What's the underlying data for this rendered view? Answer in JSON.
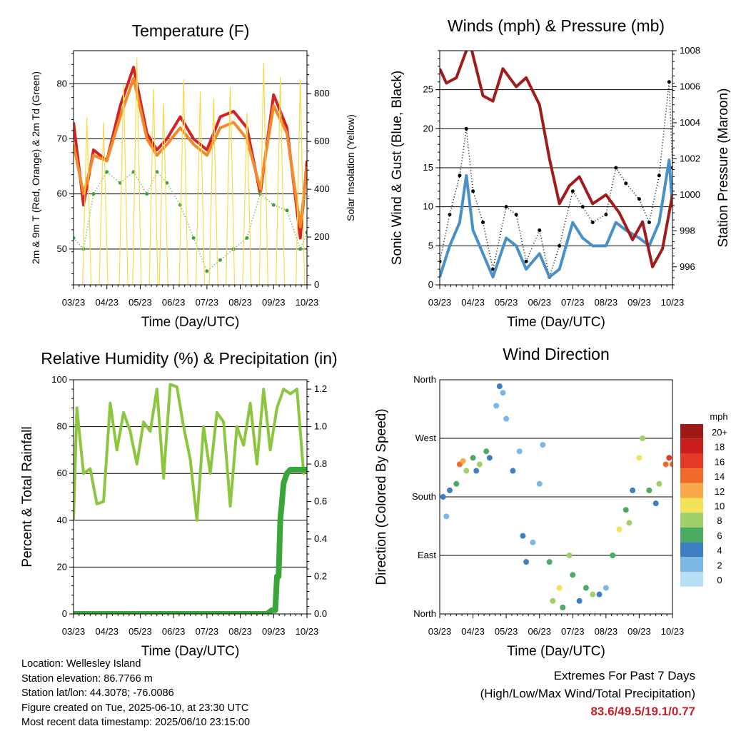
{
  "chart_data": [
    {
      "type": "line",
      "title": "Temperature (F)",
      "xlabel": "Time (Day/UTC)",
      "ylabel": "2m & 9m T (Red, Orange) & 2m Td (Green)",
      "y2label": "Solar Insolation (Yellow)",
      "x_ticks": [
        "03/23",
        "04/23",
        "05/23",
        "06/23",
        "07/23",
        "08/23",
        "09/23",
        "10/23"
      ],
      "y_ticks": [
        50,
        60,
        70,
        80
      ],
      "y2_ticks": [
        0,
        200,
        400,
        600,
        800
      ],
      "ylim": [
        43.5,
        86
      ],
      "y2lim": [
        0,
        980
      ],
      "grid": "horizontal",
      "colors": {
        "t2m": "#d42222",
        "t9m": "#f4892a",
        "td": "#3aa63a",
        "solar": "#f7d94a"
      },
      "series": [
        {
          "name": "2m T",
          "axis": "left",
          "style": "line",
          "color": "#d42222",
          "x": [
            0,
            0.3,
            0.6,
            1,
            1.4,
            1.8,
            2.2,
            2.5,
            2.8,
            3.2,
            3.6,
            4,
            4.4,
            4.8,
            5.2,
            5.6,
            6,
            6.4,
            6.8,
            7
          ],
          "y": [
            73,
            58,
            68,
            66,
            76,
            83,
            71,
            68,
            70,
            74,
            70,
            68,
            74,
            75,
            72,
            60,
            78,
            72,
            52,
            66
          ]
        },
        {
          "name": "9m T",
          "axis": "left",
          "style": "line",
          "color": "#f4892a",
          "x": [
            0,
            0.3,
            0.6,
            1,
            1.4,
            1.8,
            2.2,
            2.5,
            2.8,
            3.2,
            3.6,
            4,
            4.4,
            4.8,
            5.2,
            5.6,
            6,
            6.4,
            6.8,
            7
          ],
          "y": [
            69,
            60,
            67,
            66,
            74,
            81,
            70,
            67,
            69,
            72,
            69,
            67,
            72,
            73,
            70,
            61,
            76,
            71,
            54,
            65
          ]
        },
        {
          "name": "2m Td",
          "axis": "left",
          "style": "dots",
          "color": "#3aa63a",
          "x": [
            0,
            0.3,
            0.6,
            1,
            1.4,
            1.8,
            2.2,
            2.5,
            2.8,
            3.2,
            3.6,
            4,
            4.4,
            4.8,
            5.2,
            5.6,
            6,
            6.4,
            6.8,
            7
          ],
          "y": [
            52,
            50,
            60,
            64,
            62,
            64,
            60,
            64,
            62,
            58,
            52,
            46,
            48,
            50,
            52,
            60,
            58,
            57,
            50,
            53
          ]
        },
        {
          "name": "Solar",
          "axis": "right",
          "style": "spikes",
          "color": "#f7d94a",
          "x": [
            0.4,
            0.9,
            1.5,
            1.9,
            2.4,
            2.7,
            3.3,
            3.8,
            4.2,
            4.7,
            5.2,
            5.7,
            6.2,
            6.8
          ],
          "y": [
            700,
            680,
            840,
            950,
            820,
            760,
            860,
            810,
            780,
            830,
            720,
            930,
            870,
            860
          ]
        }
      ]
    },
    {
      "type": "line",
      "title": "Winds (mph) & Pressure (mb)",
      "xlabel": "Time (Day/UTC)",
      "ylabel": "Sonic Wind & Gust (Blue, Black)",
      "y2label": "Station Pressure (Maroon)",
      "x_ticks": [
        "03/23",
        "04/23",
        "05/23",
        "06/23",
        "07/23",
        "08/23",
        "09/23",
        "10/23"
      ],
      "y_ticks": [
        0,
        5,
        10,
        15,
        20,
        25
      ],
      "y2_ticks": [
        996,
        998,
        1000,
        1002,
        1004,
        1006,
        1008
      ],
      "ylim": [
        0,
        30
      ],
      "y2lim": [
        995,
        1008
      ],
      "grid": "horizontal",
      "colors": {
        "wind": "#4a90c8",
        "gust": "#000000",
        "pressure": "#a01c1c"
      },
      "series": [
        {
          "name": "Gust",
          "axis": "left",
          "style": "dots",
          "color": "#000000",
          "x": [
            0,
            0.3,
            0.6,
            0.8,
            1,
            1.3,
            1.6,
            2,
            2.3,
            2.6,
            3,
            3.3,
            3.6,
            4,
            4.3,
            4.6,
            5,
            5.3,
            5.6,
            6,
            6.3,
            6.6,
            6.9,
            7
          ],
          "y": [
            3,
            9,
            14,
            20,
            12,
            8,
            2,
            10,
            9,
            3,
            7,
            1,
            5,
            12,
            10,
            8,
            9,
            15,
            13,
            11,
            8,
            14,
            26,
            15
          ]
        },
        {
          "name": "Wind",
          "axis": "left",
          "style": "line",
          "color": "#4a90c8",
          "x": [
            0,
            0.3,
            0.6,
            0.8,
            1,
            1.3,
            1.6,
            2,
            2.3,
            2.6,
            3,
            3.3,
            3.6,
            4,
            4.3,
            4.6,
            5,
            5.3,
            5.6,
            6,
            6.3,
            6.6,
            6.9,
            7
          ],
          "y": [
            1,
            5,
            8,
            14,
            7,
            4,
            1,
            6,
            5,
            2,
            4,
            1,
            2,
            8,
            6,
            5,
            5,
            8,
            7,
            6,
            5,
            8,
            16,
            10
          ]
        },
        {
          "name": "Pressure",
          "axis": "right",
          "style": "line",
          "color": "#a01c1c",
          "x": [
            0,
            0.2,
            0.5,
            0.9,
            1.3,
            1.6,
            1.9,
            2.3,
            2.6,
            3,
            3.3,
            3.6,
            3.9,
            4.2,
            4.6,
            5,
            5.4,
            5.8,
            6.1,
            6.4,
            6.7,
            7
          ],
          "y": [
            1007,
            1006.2,
            1006.5,
            1008.5,
            1005.5,
            1005.2,
            1007,
            1006,
            1006.5,
            1005,
            1002,
            999.5,
            1000.5,
            1001,
            999.5,
            1000,
            999,
            997.5,
            998.5,
            996,
            997,
            1000
          ]
        }
      ]
    },
    {
      "type": "line",
      "title": "Relative Humidity (%) & Precipitation (in)",
      "xlabel": "Time (Day/UTC)",
      "ylabel": "Percent & Total Rainfall",
      "x_ticks": [
        "03/23",
        "04/23",
        "05/23",
        "06/23",
        "07/23",
        "08/23",
        "09/23",
        "10/23"
      ],
      "y_ticks": [
        0,
        20,
        40,
        60,
        80,
        100
      ],
      "y2_ticks": [
        0.0,
        0.2,
        0.4,
        0.6,
        0.8,
        1.0,
        1.2
      ],
      "ylim": [
        0,
        100
      ],
      "y2lim": [
        0,
        1.25
      ],
      "grid": "horizontal",
      "colors": {
        "rh": "#8cc63f",
        "precip": "#3aa63a"
      },
      "series": [
        {
          "name": "RH",
          "axis": "left",
          "style": "line",
          "color": "#8cc63f",
          "x": [
            0,
            0.1,
            0.3,
            0.5,
            0.7,
            0.9,
            1.1,
            1.3,
            1.5,
            1.7,
            1.9,
            2.1,
            2.3,
            2.5,
            2.7,
            2.9,
            3.1,
            3.3,
            3.5,
            3.7,
            3.9,
            4.1,
            4.3,
            4.5,
            4.7,
            4.9,
            5.1,
            5.3,
            5.5,
            5.7,
            5.9,
            6.1,
            6.3,
            6.5,
            6.7,
            6.9,
            7
          ],
          "y": [
            40,
            88,
            60,
            62,
            47,
            48,
            90,
            70,
            86,
            78,
            64,
            82,
            78,
            96,
            58,
            98,
            97,
            80,
            66,
            40,
            80,
            60,
            86,
            82,
            46,
            80,
            72,
            90,
            64,
            96,
            70,
            88,
            96,
            94,
            96,
            60,
            62
          ]
        },
        {
          "name": "Precip",
          "axis": "right",
          "style": "step",
          "color": "#3aa63a",
          "x": [
            0,
            5.8,
            5.95,
            6.05,
            6.1,
            6.15,
            6.2,
            6.3,
            6.4,
            6.5,
            7
          ],
          "y": [
            0,
            0,
            0.02,
            0.02,
            0.2,
            0.2,
            0.5,
            0.7,
            0.75,
            0.77,
            0.77
          ]
        }
      ]
    },
    {
      "type": "scatter",
      "title": "Wind Direction",
      "xlabel": "Time (Day/UTC)",
      "ylabel": "Direction (Colored By Speed)",
      "x_ticks": [
        "03/23",
        "04/23",
        "05/23",
        "06/23",
        "07/23",
        "08/23",
        "09/23",
        "10/23"
      ],
      "y_ticks": [
        "North",
        "East",
        "South",
        "West",
        "North"
      ],
      "ylim": [
        0,
        360
      ],
      "grid": "horizontal",
      "legend": {
        "title": "mph",
        "placement": "right",
        "labels": [
          "20+",
          "18",
          "16",
          "14",
          "12",
          "10",
          "8",
          "6",
          "4",
          "2",
          "0"
        ],
        "colors": [
          "#9e1a1a",
          "#c81e1e",
          "#e23a27",
          "#f06a2a",
          "#f9a94a",
          "#f1e35a",
          "#9fd06a",
          "#4cab63",
          "#3e7fc1",
          "#7db7e4",
          "#b7e0f7"
        ]
      },
      "x": [
        0.1,
        0.2,
        0.3,
        0.5,
        0.6,
        0.7,
        0.8,
        1,
        1.1,
        1.2,
        1.4,
        1.5,
        1.7,
        1.8,
        1.9,
        2.0,
        2.2,
        2.4,
        2.5,
        2.6,
        2.8,
        3.0,
        3.1,
        3.3,
        3.4,
        3.6,
        3.7,
        3.9,
        4.0,
        4.2,
        4.4,
        4.6,
        4.8,
        5.0,
        5.2,
        5.4,
        5.6,
        5.7,
        5.8,
        6.0,
        6.1,
        6.3,
        6.5,
        6.6,
        6.8,
        6.9,
        7.0
      ],
      "y": [
        180,
        150,
        190,
        200,
        230,
        235,
        220,
        240,
        220,
        230,
        250,
        240,
        320,
        350,
        340,
        300,
        220,
        250,
        120,
        80,
        110,
        200,
        260,
        80,
        20,
        40,
        10,
        90,
        60,
        20,
        40,
        30,
        30,
        40,
        90,
        130,
        160,
        140,
        190,
        240,
        270,
        190,
        170,
        200,
        230,
        240,
        230
      ],
      "speed": [
        4,
        2,
        4,
        6,
        14,
        12,
        8,
        6,
        4,
        8,
        6,
        4,
        2,
        4,
        2,
        2,
        4,
        2,
        4,
        4,
        2,
        2,
        2,
        6,
        8,
        10,
        6,
        8,
        6,
        4,
        6,
        8,
        4,
        2,
        6,
        10,
        6,
        8,
        4,
        10,
        8,
        6,
        4,
        8,
        14,
        16,
        14
      ]
    }
  ],
  "info": {
    "location": "Location: Wellesley Island",
    "elevation": "Station elevation: 86.7766 m",
    "latlon": "Station lat/lon: 44.3078; -76.0086",
    "created": "Figure created on Tue, 2025-06-10, at 23:30 UTC",
    "timestamp": "Most recent data timestamp: 2025/06/10 23:15:00"
  },
  "extremes": {
    "line1": "Extremes For Past 7 Days",
    "line2": "(High/Low/Max Wind/Total Precipitation)",
    "values": "83.6/49.5/19.1/0.77"
  }
}
